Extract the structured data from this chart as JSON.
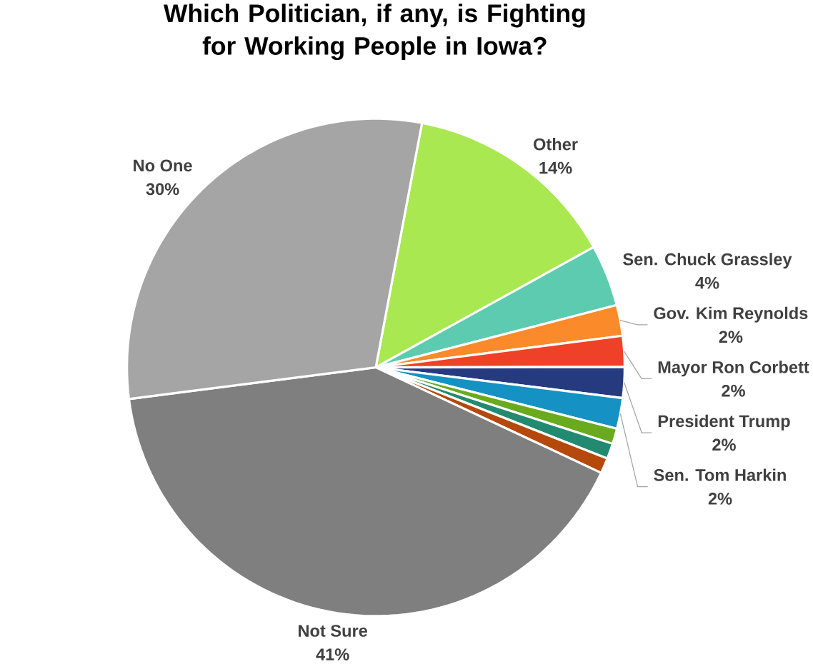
{
  "chart_data": {
    "type": "pie",
    "title": "Which Politician, if any, is Fighting for Working People in Iowa?",
    "categories": [
      "Other",
      "Sen. Chuck Grassley",
      "Gov. Kim Reynolds",
      "Mayor Ron Corbett",
      "President Trump",
      "Sen. Tom Harkin",
      null,
      null,
      null,
      "Not Sure",
      "No One"
    ],
    "values": [
      14,
      4,
      2,
      2,
      2,
      2,
      1,
      1,
      1,
      41,
      30
    ],
    "value_labels": [
      "14%",
      "4%",
      "2%",
      "2%",
      "2%",
      "2%",
      null,
      null,
      null,
      "41%",
      "30%"
    ],
    "colors": [
      "#a9e851",
      "#5ccbb0",
      "#fb8a2a",
      "#ee4127",
      "#253a7f",
      "#1592c3",
      "#6aaa1e",
      "#238a72",
      "#b5490b",
      "#7f7f7f",
      "#a5a5a5"
    ]
  }
}
